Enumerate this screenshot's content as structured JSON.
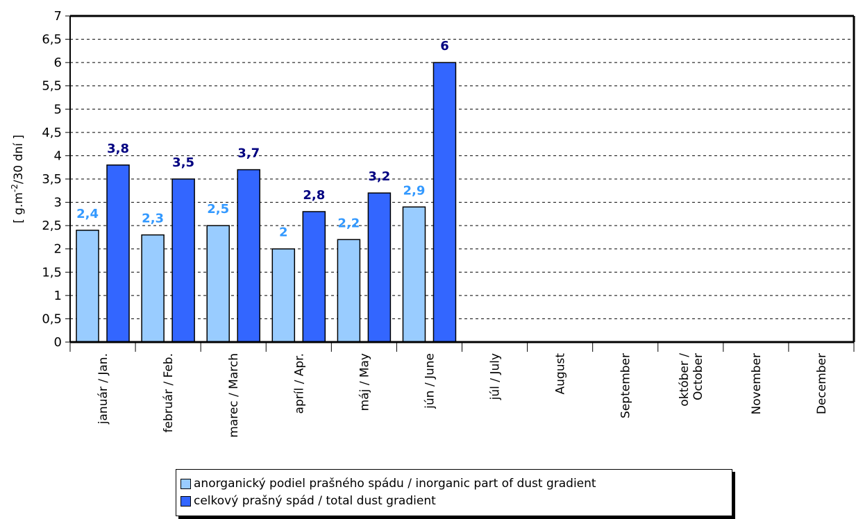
{
  "chart_data": {
    "type": "bar",
    "title": "",
    "ylabel_pre": "[ g.m",
    "ylabel_sup": "-2",
    "ylabel_post": "/30 dní ]",
    "xlabel": "",
    "ylim": [
      0,
      7
    ],
    "ytick_step": 0.5,
    "yticks": [
      "0",
      "0,5",
      "1",
      "1,5",
      "2",
      "2,5",
      "3",
      "3,5",
      "4",
      "4,5",
      "5",
      "5,5",
      "6",
      "6,5",
      "7"
    ],
    "grid": true,
    "legend_position": "bottom",
    "categories": [
      [
        "január / Jan."
      ],
      [
        "február / Feb."
      ],
      [
        "marec / March"
      ],
      [
        "apríl / Apr."
      ],
      [
        "máj / May"
      ],
      [
        "jún / June"
      ],
      [
        "júl / July"
      ],
      [
        "August"
      ],
      [
        "September"
      ],
      [
        "október /",
        "October"
      ],
      [
        "November"
      ],
      [
        "December"
      ]
    ],
    "series": [
      {
        "name": "anorganický podiel prašného spádu / inorganic part of dust gradient",
        "color": "#99ccff",
        "label_color": "#3399ff",
        "values": [
          2.4,
          2.3,
          2.5,
          2.0,
          2.2,
          2.9,
          null,
          null,
          null,
          null,
          null,
          null
        ],
        "labels": [
          "2,4",
          "2,3",
          "2,5",
          "2",
          "2,2",
          "2,9",
          "",
          "",
          "",
          "",
          "",
          ""
        ]
      },
      {
        "name": "celkový prašný spád / total dust gradient",
        "color": "#3366ff",
        "label_color": "#000080",
        "values": [
          3.8,
          3.5,
          3.7,
          2.8,
          3.2,
          6.0,
          null,
          null,
          null,
          null,
          null,
          null
        ],
        "labels": [
          "3,8",
          "3,5",
          "3,7",
          "2,8",
          "3,2",
          "6",
          "",
          "",
          "",
          "",
          "",
          ""
        ]
      }
    ]
  }
}
